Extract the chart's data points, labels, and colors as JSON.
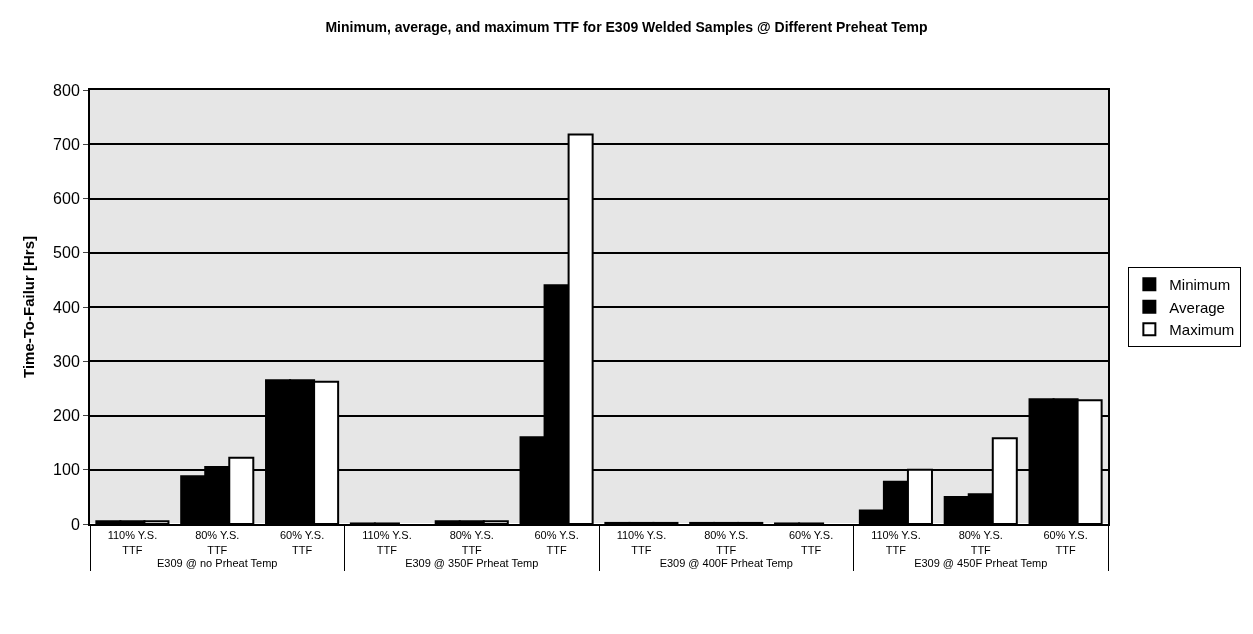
{
  "chart_data": {
    "type": "bar",
    "title": "Minimum, average, and maximum TTF for E309 Welded Samples @ Different Preheat Temp",
    "ylabel": "Time-To-Failur [Hrs]",
    "categories": [
      "110% Y.S. TTF",
      "80% Y.S. TTF",
      "60% Y.S. TTF",
      "110% Y.S. TTF",
      "80% Y.S. TTF",
      "60% Y.S. TTF",
      "110% Y.S. TTF",
      "80% Y.S. TTF",
      "60% Y.S. TTF",
      "110% Y.S. TTF",
      "80% Y.S. TTF",
      "60% Y.S. TTF"
    ],
    "annotations": [
      "E309 @ no Prheat Temp",
      "E309 @ 350F Prheat Temp",
      "E309 @ 400F Prheat Temp",
      "E309 @ 450F Prheat Temp"
    ],
    "series": [
      {
        "name": "Minimum",
        "color": "#000000",
        "values": [
          5,
          88,
          265,
          1,
          5,
          160,
          2,
          2,
          1,
          25,
          50,
          230
        ]
      },
      {
        "name": "Average",
        "color": "#000000",
        "values": [
          5,
          105,
          265,
          1,
          5,
          440,
          2,
          2,
          1,
          78,
          55,
          230
        ]
      },
      {
        "name": "Maximum",
        "color": "#ffffff",
        "values": [
          5,
          122,
          262,
          null,
          5,
          718,
          2,
          2,
          null,
          100,
          158,
          228
        ]
      }
    ],
    "ylim": [
      0,
      800
    ],
    "yticks": [
      0,
      100,
      200,
      300,
      400,
      500,
      600,
      700,
      800
    ],
    "grid": "y",
    "legend": "right"
  }
}
